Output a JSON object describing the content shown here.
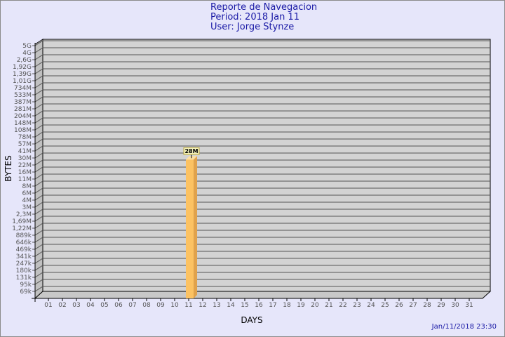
{
  "header": {
    "title": "Reporte de Navegacion",
    "period": "Period: 2018 Jan 11",
    "user": "User: Jorge Stynze"
  },
  "footer": {
    "timestamp": "Jan/11/2018 23:30"
  },
  "colors": {
    "background": "#e6e6fa",
    "plot": "#d3d3d3",
    "bar": "#fcc262",
    "bar_side": "#e0a24c",
    "title": "#1a1aa6"
  },
  "chart_data": {
    "type": "bar",
    "xlabel": "DAYS",
    "ylabel": "BYTES",
    "y_scale": "log",
    "grid": true,
    "y_ticks": [
      "5G",
      "4G",
      "2,6G",
      "1,92G",
      "1,39G",
      "1,01G",
      "734M",
      "533M",
      "387M",
      "281M",
      "204M",
      "148M",
      "108M",
      "78M",
      "57M",
      "41M",
      "30M",
      "22M",
      "16M",
      "11M",
      "8M",
      "6M",
      "4M",
      "3M",
      "2,3M",
      "1,69M",
      "1,22M",
      "889k",
      "646k",
      "469k",
      "341k",
      "247k",
      "180k",
      "131k",
      "95k",
      "69k"
    ],
    "categories": [
      "01",
      "02",
      "03",
      "04",
      "05",
      "06",
      "07",
      "08",
      "09",
      "10",
      "11",
      "12",
      "13",
      "14",
      "15",
      "16",
      "17",
      "18",
      "19",
      "20",
      "21",
      "22",
      "23",
      "24",
      "25",
      "26",
      "27",
      "28",
      "29",
      "30",
      "31"
    ],
    "series": [
      {
        "values": [
          null,
          null,
          null,
          null,
          null,
          null,
          null,
          null,
          null,
          null,
          "28M",
          null,
          null,
          null,
          null,
          null,
          null,
          null,
          null,
          null,
          null,
          null,
          null,
          null,
          null,
          null,
          null,
          null,
          null,
          null,
          null
        ]
      }
    ],
    "data_labels": [
      "28M"
    ]
  }
}
